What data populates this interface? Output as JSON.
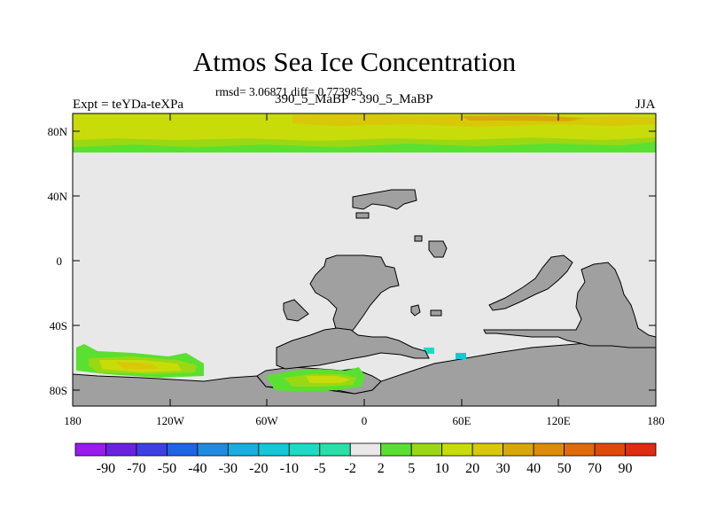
{
  "title": "Atmos Sea Ice Concentration",
  "stats": "rmsd= 3.06871 diff= 0.773985",
  "experiment_label": "Expt = teYDa-teXPa",
  "runs_label": "390_5_MaBP - 390_5_MaBP",
  "season": "JJA",
  "map": {
    "type": "map",
    "projection": "cylindrical equidistant",
    "lon_range": [
      -180,
      180
    ],
    "lat_range": [
      -90,
      90
    ],
    "lat_tick_labels": [
      "80N",
      "40N",
      "0",
      "40S",
      "80S"
    ],
    "lon_tick_labels": [
      "180",
      "120W",
      "60W",
      "0",
      "60E",
      "120E",
      "180"
    ],
    "land_color": "#a0a0a0",
    "ocean_color": "#e8e8e8"
  },
  "colorbar": {
    "labels": [
      "-90",
      "-70",
      "-50",
      "-40",
      "-30",
      "-20",
      "-10",
      "-5",
      "-2",
      "2",
      "5",
      "10",
      "20",
      "30",
      "40",
      "50",
      "70",
      "90"
    ],
    "colors": [
      "#9a1bf0",
      "#6b22e0",
      "#3f3fe6",
      "#1f63e6",
      "#1f8ae0",
      "#18aee0",
      "#14c8d8",
      "#1adcc4",
      "#28e0a8",
      "#e8e8e8",
      "#5ae030",
      "#9ad814",
      "#c8dc0a",
      "#d8c808",
      "#d8a808",
      "#dc8c08",
      "#e06a08",
      "#e04a08",
      "#e02c10"
    ]
  }
}
